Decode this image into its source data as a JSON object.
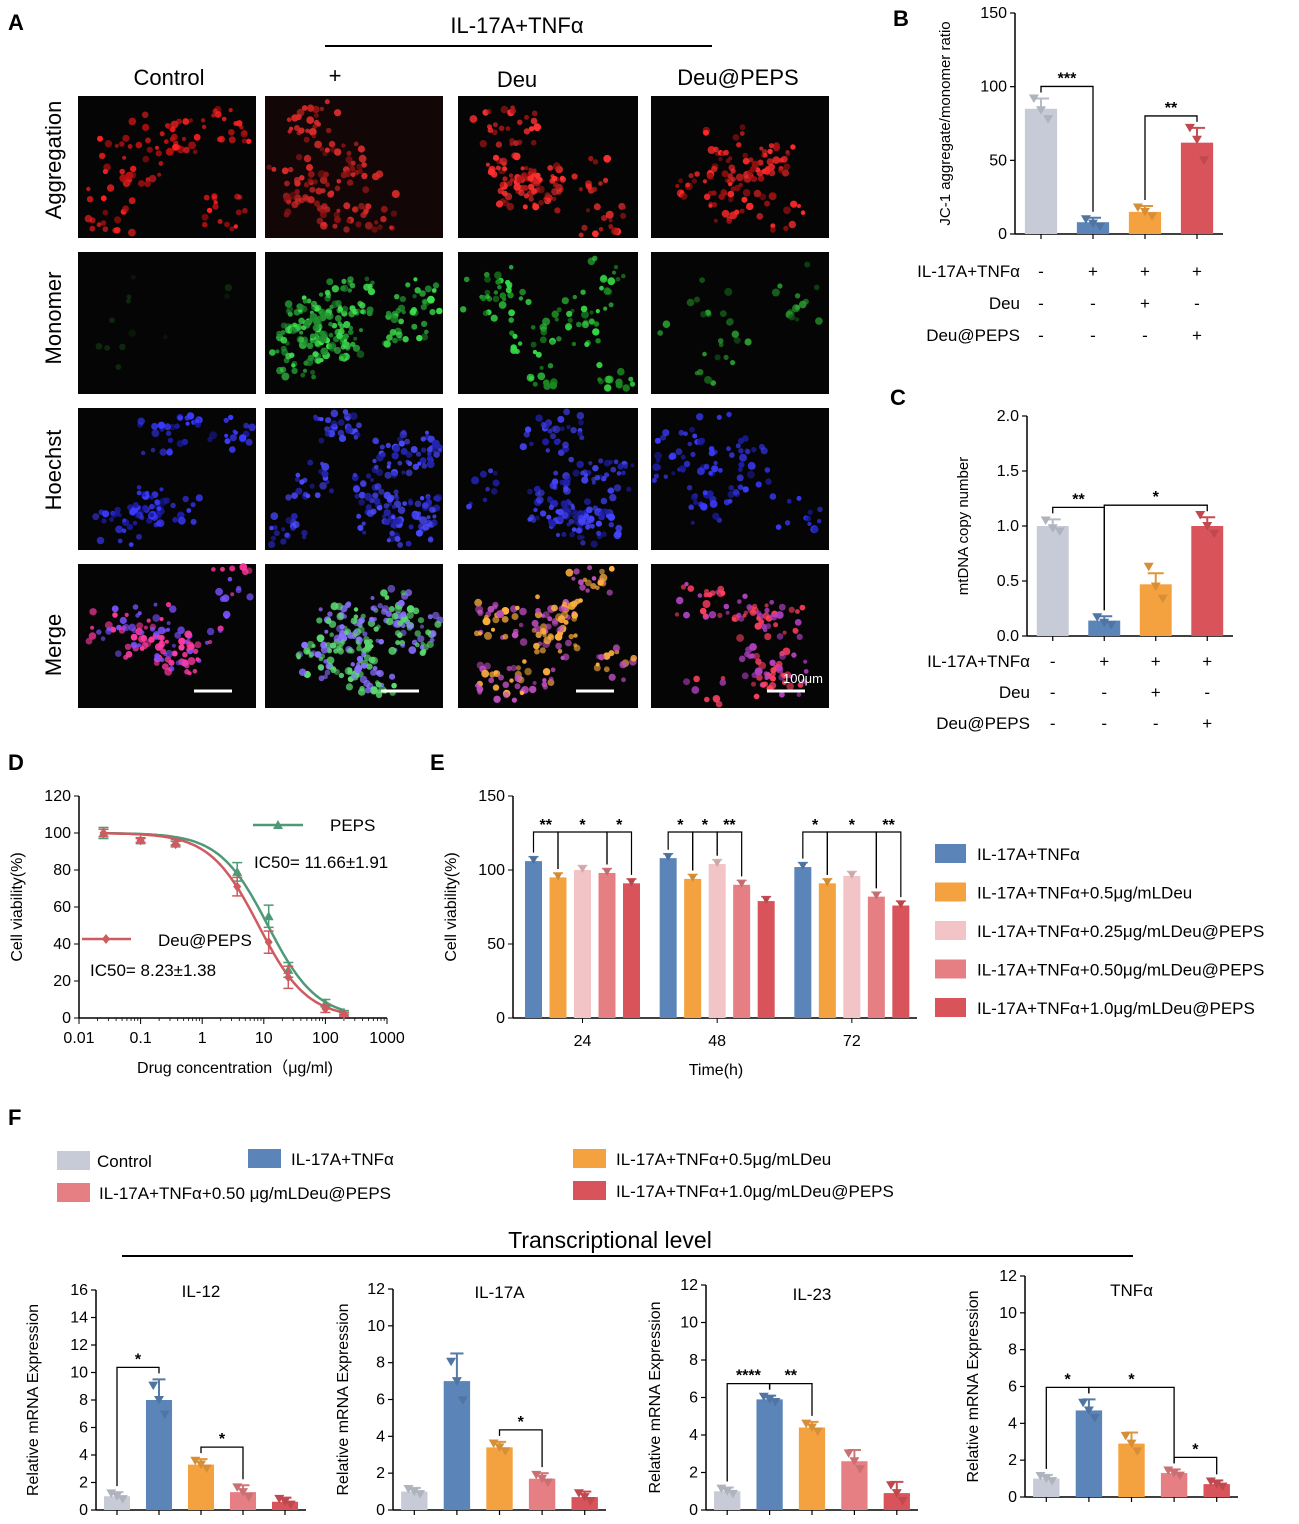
{
  "panel_letters": {
    "a": "A",
    "b": "B",
    "c": "C",
    "d": "D",
    "e": "E",
    "f": "F"
  },
  "colors": {
    "control": "#c7cbd8",
    "il17a_tnf": "#5b85b8",
    "deu_0_5": "#f4a23f",
    "peps_0_25": "#f2c4c6",
    "peps_0_50": "#e57f84",
    "peps_1_0": "#d8535a",
    "peps_curve": "#4e9a77",
    "deu_peps_curve": "#cf5a5f"
  },
  "panelA": {
    "treatment_header": "IL-17A+TNFα",
    "columns": [
      "Control",
      "+",
      "Deu",
      "Deu@PEPS"
    ],
    "rows": [
      "Aggregation",
      "Monomer",
      "Hoechst",
      "Merge"
    ],
    "scale_bar_label": "100μm"
  },
  "condition_table": {
    "row_labels": [
      "IL-17A+TNFα",
      "Deu",
      "Deu@PEPS"
    ],
    "rows": [
      [
        "-",
        "+",
        "+",
        "+"
      ],
      [
        "-",
        "-",
        "+",
        "-"
      ],
      [
        "-",
        "-",
        "-",
        "+"
      ]
    ]
  },
  "chart_data": [
    {
      "id": "B",
      "type": "bar",
      "ylabel": "JC-1 aggregate/monomer ratio",
      "ylim": [
        0,
        150
      ],
      "yticks": [
        0,
        50,
        100,
        150
      ],
      "values": [
        85,
        8,
        15,
        62
      ],
      "errors": [
        7,
        3,
        4,
        10
      ],
      "points": [
        [
          92,
          84,
          78
        ],
        [
          10,
          7,
          5
        ],
        [
          18,
          15,
          12
        ],
        [
          72,
          64,
          50
        ]
      ],
      "color_keys": [
        "control",
        "il17a_tnf",
        "deu_0_5",
        "peps_1_0"
      ],
      "significance": [
        {
          "from": 0,
          "to": 1,
          "label": "***"
        },
        {
          "from": 2,
          "to": 3,
          "label": "**"
        }
      ]
    },
    {
      "id": "C",
      "type": "bar",
      "ylabel": "mtDNA copy number",
      "ylim": [
        0,
        2.0
      ],
      "yticks": [
        "0.0",
        "0.5",
        "1.0",
        "1.5",
        "2.0"
      ],
      "values": [
        1.0,
        0.14,
        0.47,
        1.0
      ],
      "errors": [
        0.06,
        0.04,
        0.1,
        0.08
      ],
      "points": [
        [
          1.05,
          0.98,
          0.95
        ],
        [
          0.17,
          0.12,
          0.1
        ],
        [
          0.63,
          0.45,
          0.34
        ],
        [
          1.1,
          1.0,
          0.93
        ]
      ],
      "color_keys": [
        "control",
        "il17a_tnf",
        "deu_0_5",
        "peps_1_0"
      ],
      "significance": [
        {
          "from": 0,
          "to": 1,
          "label": "**"
        },
        {
          "from": 1,
          "to": 3,
          "label": "*"
        }
      ]
    },
    {
      "id": "D",
      "type": "line",
      "xlabel": "Drug concentration（μg/ml)",
      "ylabel": "Cell viability(%)",
      "xscale": "log",
      "xlim": [
        0.01,
        1000
      ],
      "xticks": [
        "0.01",
        "0.1",
        "1",
        "10",
        "100",
        "1000"
      ],
      "ylim": [
        0,
        120
      ],
      "yticks": [
        0,
        20,
        40,
        60,
        80,
        100,
        120
      ],
      "series": [
        {
          "name": "PEPS",
          "annotation": "IC50= 11.66±1.91",
          "color_key": "peps_curve",
          "marker": "triangle",
          "ic50": 11.66,
          "x": [
            0.025,
            0.1,
            0.37,
            3.7,
            12,
            25,
            100,
            200
          ],
          "y": [
            100,
            96,
            95,
            79,
            55,
            26,
            8,
            3
          ],
          "err": [
            3,
            1.5,
            1.5,
            5,
            6,
            4,
            2,
            1
          ]
        },
        {
          "name": "Deu@PEPS",
          "annotation": "IC50= 8.23±1.38",
          "color_key": "deu_peps_curve",
          "marker": "diamond",
          "ic50": 8.23,
          "x": [
            0.025,
            0.1,
            0.37,
            3.7,
            12,
            25,
            100,
            200
          ],
          "y": [
            100,
            96,
            94,
            71,
            41,
            22,
            5,
            2
          ],
          "err": [
            2,
            1,
            1.5,
            5,
            6,
            6,
            2,
            1
          ]
        }
      ]
    },
    {
      "id": "E",
      "type": "bar",
      "xlabel": "Time(h)",
      "ylabel": "Cell viability(%)",
      "ylim": [
        0,
        150
      ],
      "yticks": [
        0,
        50,
        100,
        150
      ],
      "categories": [
        "24",
        "48",
        "72"
      ],
      "series": [
        {
          "name": "IL-17A+TNFα",
          "color_key": "il17a_tnf",
          "values": [
            106,
            108,
            102
          ]
        },
        {
          "name": "IL-17A+TNFα+0.5μg/mLDeu",
          "color_key": "deu_0_5",
          "values": [
            95,
            94,
            91
          ]
        },
        {
          "name": "IL-17A+TNFα+0.25μg/mLDeu@PEPS",
          "color_key": "peps_0_25",
          "values": [
            100,
            104,
            96
          ]
        },
        {
          "name": "IL-17A+TNFα+0.50μg/mLDeu@PEPS",
          "color_key": "peps_0_50",
          "values": [
            98,
            90,
            82
          ]
        },
        {
          "name": "IL-17A+TNFα+1.0μg/mLDeu@PEPS",
          "color_key": "peps_1_0",
          "values": [
            91,
            79,
            76
          ]
        }
      ],
      "significance": [
        {
          "group": 0,
          "from": 0,
          "to": 1,
          "label": "**"
        },
        {
          "group": 0,
          "from": 1,
          "to": 3,
          "label": "*"
        },
        {
          "group": 0,
          "from": 3,
          "to": 4,
          "label": "*"
        },
        {
          "group": 1,
          "from": 0,
          "to": 1,
          "label": "*"
        },
        {
          "group": 1,
          "from": 1,
          "to": 2,
          "label": "*"
        },
        {
          "group": 1,
          "from": 2,
          "to": 3,
          "label": "**"
        },
        {
          "group": 2,
          "from": 0,
          "to": 1,
          "label": "*"
        },
        {
          "group": 2,
          "from": 1,
          "to": 3,
          "label": "*"
        },
        {
          "group": 2,
          "from": 3,
          "to": 4,
          "label": "**"
        }
      ]
    },
    {
      "id": "F-IL-12",
      "type": "bar",
      "title": "IL-12",
      "ylabel": "Relative mRNA Expression",
      "ylim": [
        0,
        16
      ],
      "yticks": [
        0,
        2,
        4,
        6,
        8,
        10,
        12,
        14,
        16
      ],
      "values": [
        1.0,
        8.0,
        3.3,
        1.3,
        0.6
      ],
      "errors": [
        0.3,
        1.5,
        0.4,
        0.5,
        0.3
      ],
      "color_keys": [
        "control",
        "il17a_tnf",
        "deu_0_5",
        "peps_0_50",
        "peps_1_0"
      ],
      "significance": [
        {
          "from": 0,
          "to": 1,
          "label": "*"
        },
        {
          "from": 2,
          "to": 3,
          "label": "*"
        }
      ]
    },
    {
      "id": "F-IL-17A",
      "type": "bar",
      "title": "IL-17A",
      "ylabel": "Relative mRNA Expression",
      "ylim": [
        0,
        12
      ],
      "yticks": [
        0,
        2,
        4,
        6,
        8,
        10,
        12
      ],
      "values": [
        1.0,
        7.0,
        3.4,
        1.7,
        0.7
      ],
      "errors": [
        0.2,
        1.5,
        0.3,
        0.3,
        0.3
      ],
      "color_keys": [
        "control",
        "il17a_tnf",
        "deu_0_5",
        "peps_0_50",
        "peps_1_0"
      ],
      "significance": [
        {
          "from": 2,
          "to": 3,
          "label": "*"
        }
      ]
    },
    {
      "id": "F-IL-23",
      "type": "bar",
      "title": "IL-23",
      "ylabel": "Relative mRNA Expression",
      "ylim": [
        0,
        12
      ],
      "yticks": [
        0,
        2,
        4,
        6,
        8,
        10,
        12
      ],
      "values": [
        1.0,
        5.9,
        4.4,
        2.6,
        0.9
      ],
      "errors": [
        0.2,
        0.2,
        0.3,
        0.6,
        0.6
      ],
      "color_keys": [
        "control",
        "il17a_tnf",
        "deu_0_5",
        "peps_0_50",
        "peps_1_0"
      ],
      "significance": [
        {
          "from": 0,
          "to": 1,
          "label": "****"
        },
        {
          "from": 1,
          "to": 2,
          "label": "**"
        }
      ]
    },
    {
      "id": "F-TNFa",
      "type": "bar",
      "title": "TNFα",
      "ylabel": "Relative mRNA Expression",
      "ylim": [
        0,
        12
      ],
      "yticks": [
        0,
        2,
        4,
        6,
        8,
        10,
        12
      ],
      "values": [
        1.0,
        4.7,
        2.9,
        1.3,
        0.7
      ],
      "errors": [
        0.2,
        0.6,
        0.6,
        0.2,
        0.2
      ],
      "color_keys": [
        "control",
        "il17a_tnf",
        "deu_0_5",
        "peps_0_50",
        "peps_1_0"
      ],
      "significance": [
        {
          "from": 0,
          "to": 1,
          "label": "*"
        },
        {
          "from": 1,
          "to": 3,
          "label": "*"
        },
        {
          "from": 3,
          "to": 4,
          "label": "*"
        }
      ]
    }
  ],
  "panelF": {
    "legend": [
      {
        "label": "Control",
        "color_key": "control"
      },
      {
        "label": "IL-17A+TNFα",
        "color_key": "il17a_tnf"
      },
      {
        "label": "IL-17A+TNFα+0.5μg/mLDeu",
        "color_key": "deu_0_5"
      },
      {
        "label": "IL-17A+TNFα+0.50 μg/mLDeu@PEPS",
        "color_key": "peps_0_50"
      },
      {
        "label": "IL-17A+TNFα+1.0μg/mLDeu@PEPS",
        "color_key": "peps_1_0"
      }
    ],
    "section_title": "Transcriptional level"
  }
}
